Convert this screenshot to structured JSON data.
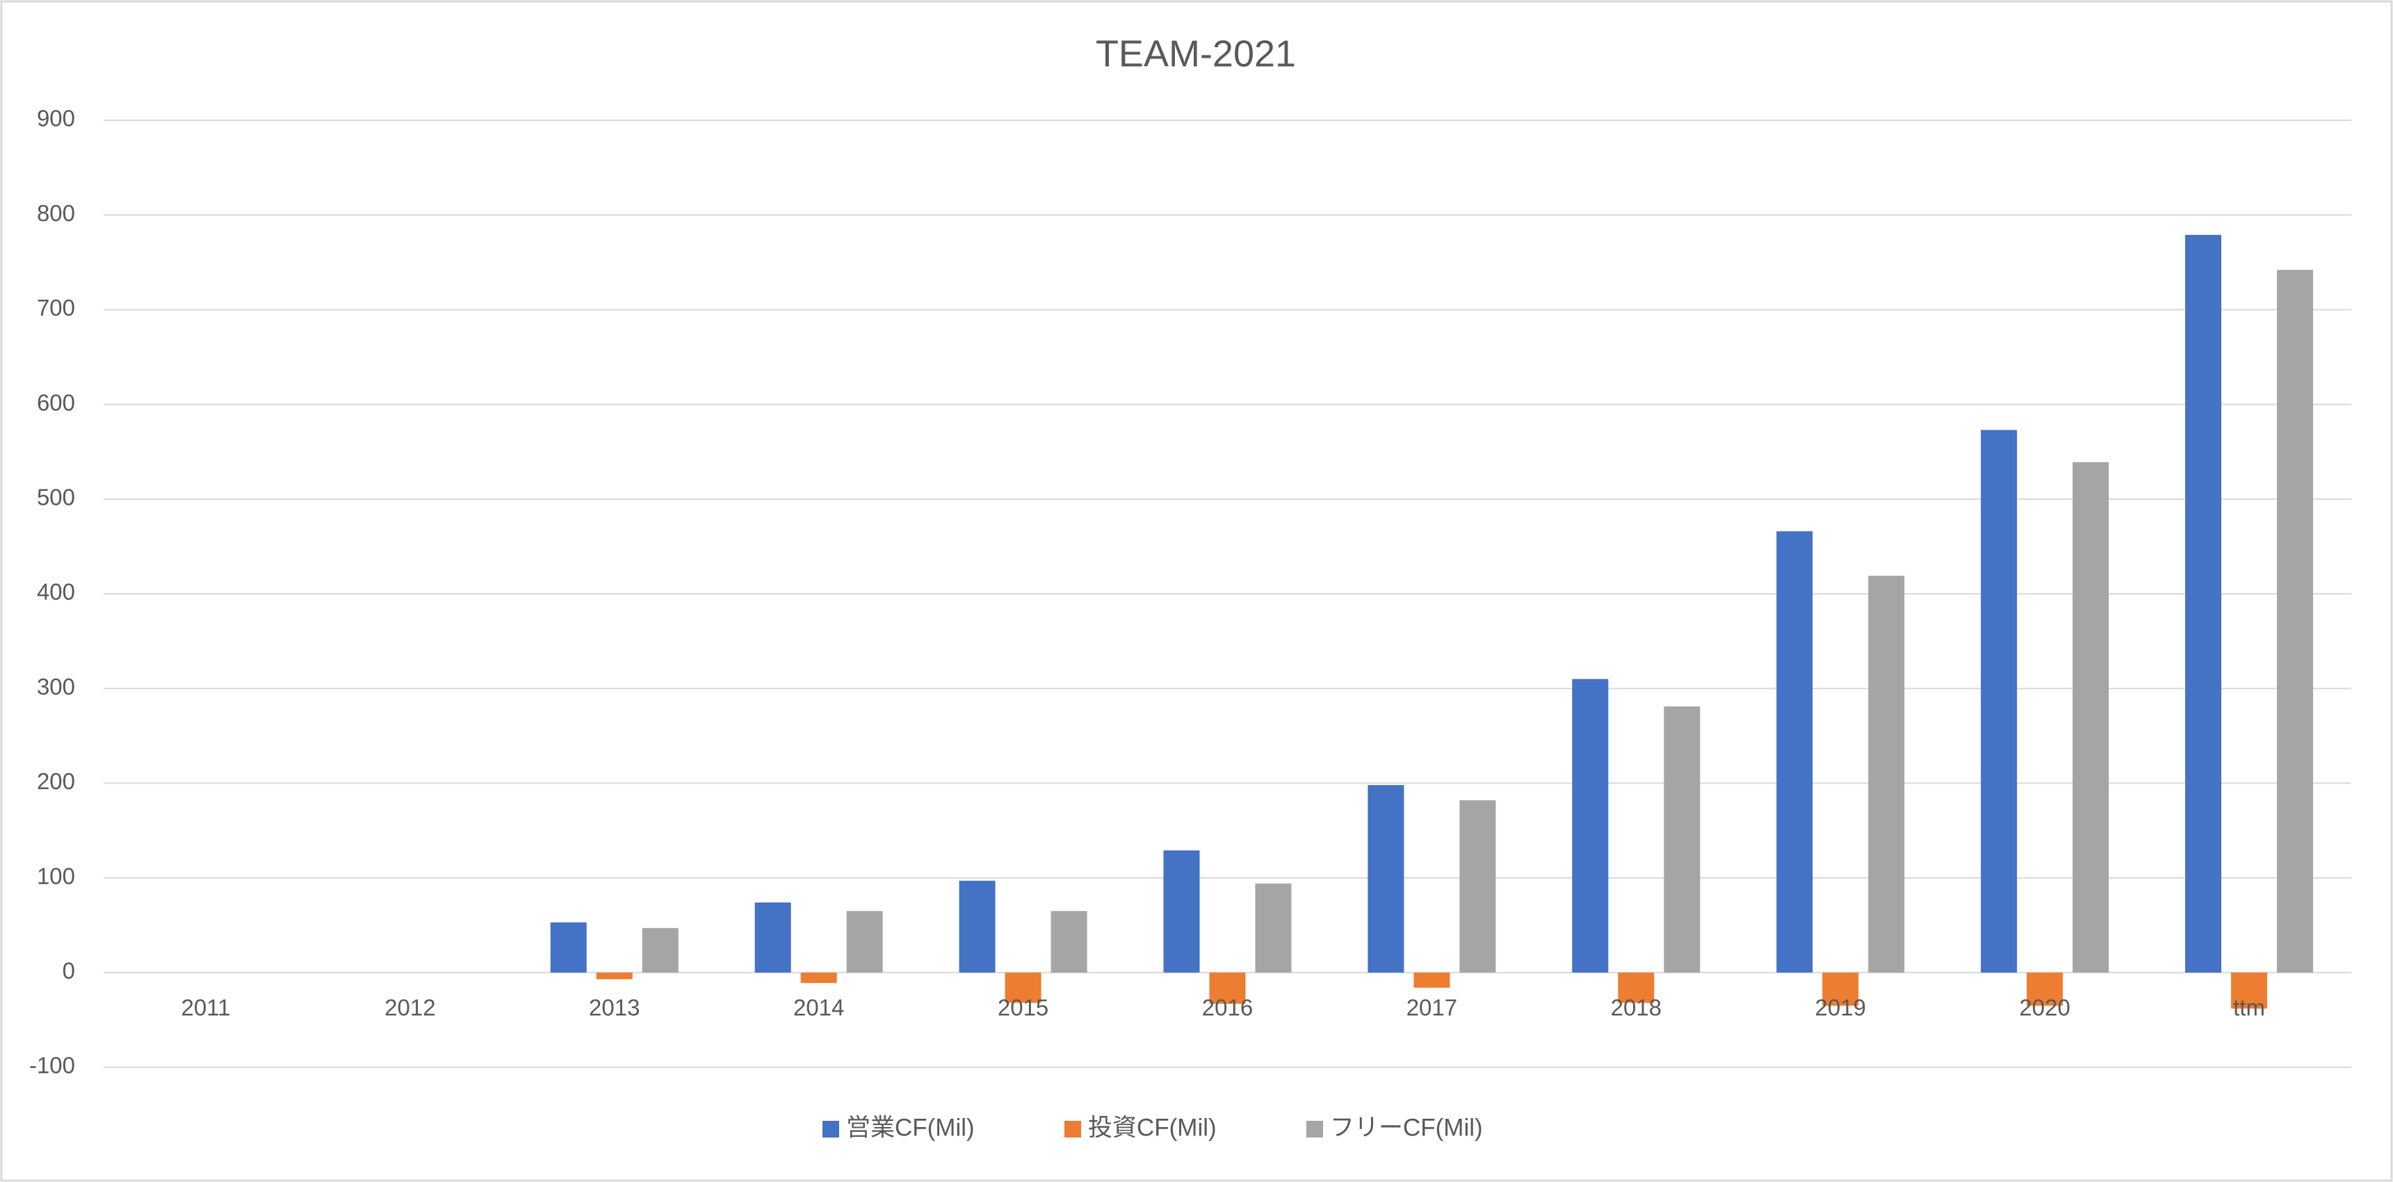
{
  "chart_data": {
    "type": "bar",
    "title": "TEAM-2021",
    "categories": [
      "2011",
      "2012",
      "2013",
      "2014",
      "2015",
      "2016",
      "2017",
      "2018",
      "2019",
      "2020",
      "ttm"
    ],
    "series": [
      {
        "name": "営業CF(Mil)",
        "color": "#4472c4",
        "values": [
          null,
          null,
          53,
          74,
          97,
          129,
          198,
          310,
          466,
          573,
          779
        ]
      },
      {
        "name": "投資CF(Mil)",
        "color": "#ed7d31",
        "values": [
          null,
          null,
          -7,
          -11,
          -32,
          -33,
          -16,
          -32,
          -35,
          -35,
          -38
        ]
      },
      {
        "name": "フリーCF(Mil)",
        "color": "#a5a5a5",
        "values": [
          null,
          null,
          47,
          65,
          65,
          94,
          182,
          281,
          419,
          539,
          742
        ]
      }
    ],
    "ylim": [
      -100,
      900
    ],
    "yticks": [
      -100,
      0,
      100,
      200,
      300,
      400,
      500,
      600,
      700,
      800,
      900
    ],
    "grid": true,
    "legend": "bottom"
  }
}
